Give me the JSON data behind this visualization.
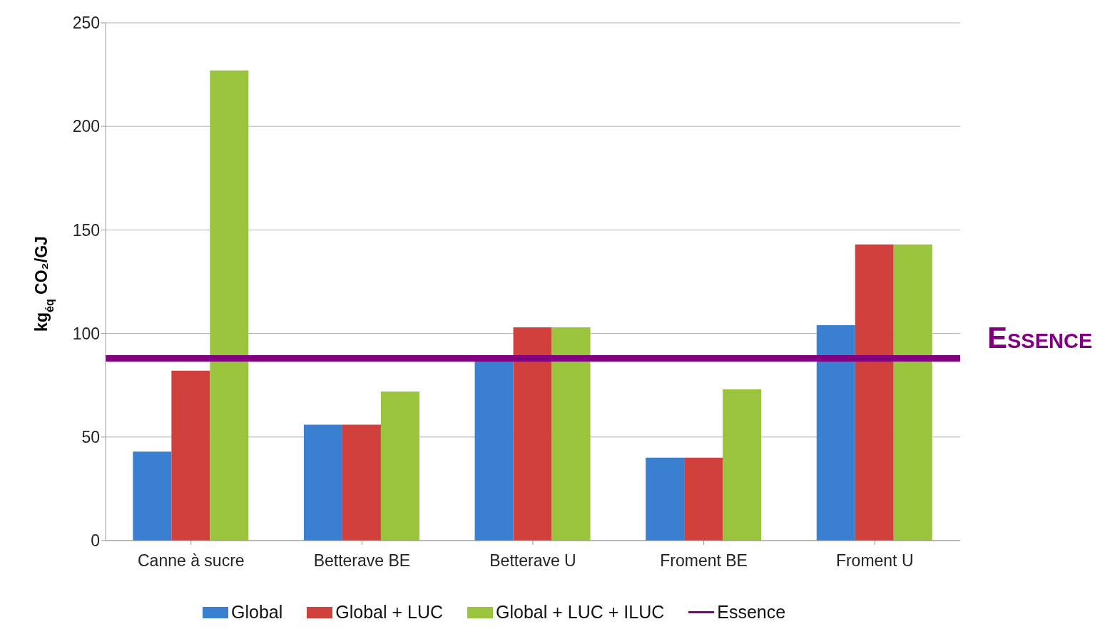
{
  "chart_data": {
    "type": "bar",
    "ylabel": "kg$_{éq}$ CO₂/GJ",
    "categories": [
      "Canne à sucre",
      "Betterave BE",
      "Betterave U",
      "Froment BE",
      "Froment U"
    ],
    "series": [
      {
        "name": "Global",
        "color": "#3b7fd0",
        "values": [
          43,
          56,
          87,
          40,
          104
        ]
      },
      {
        "name": "Global + LUC",
        "color": "#d0403c",
        "values": [
          82,
          56,
          103,
          40,
          143
        ]
      },
      {
        "name": "Global + LUC + ILUC",
        "color": "#9bc43e",
        "values": [
          227,
          72,
          103,
          73,
          143
        ]
      }
    ],
    "ylim": [
      0,
      250
    ],
    "yticks": [
      0,
      50,
      100,
      150,
      200,
      250
    ],
    "grid": "y",
    "legend": "bottom",
    "ref_lines": [
      {
        "axis": "y",
        "value": 88,
        "label": "Essence",
        "color": "#800080"
      }
    ],
    "annotations": [
      "Essence"
    ]
  }
}
